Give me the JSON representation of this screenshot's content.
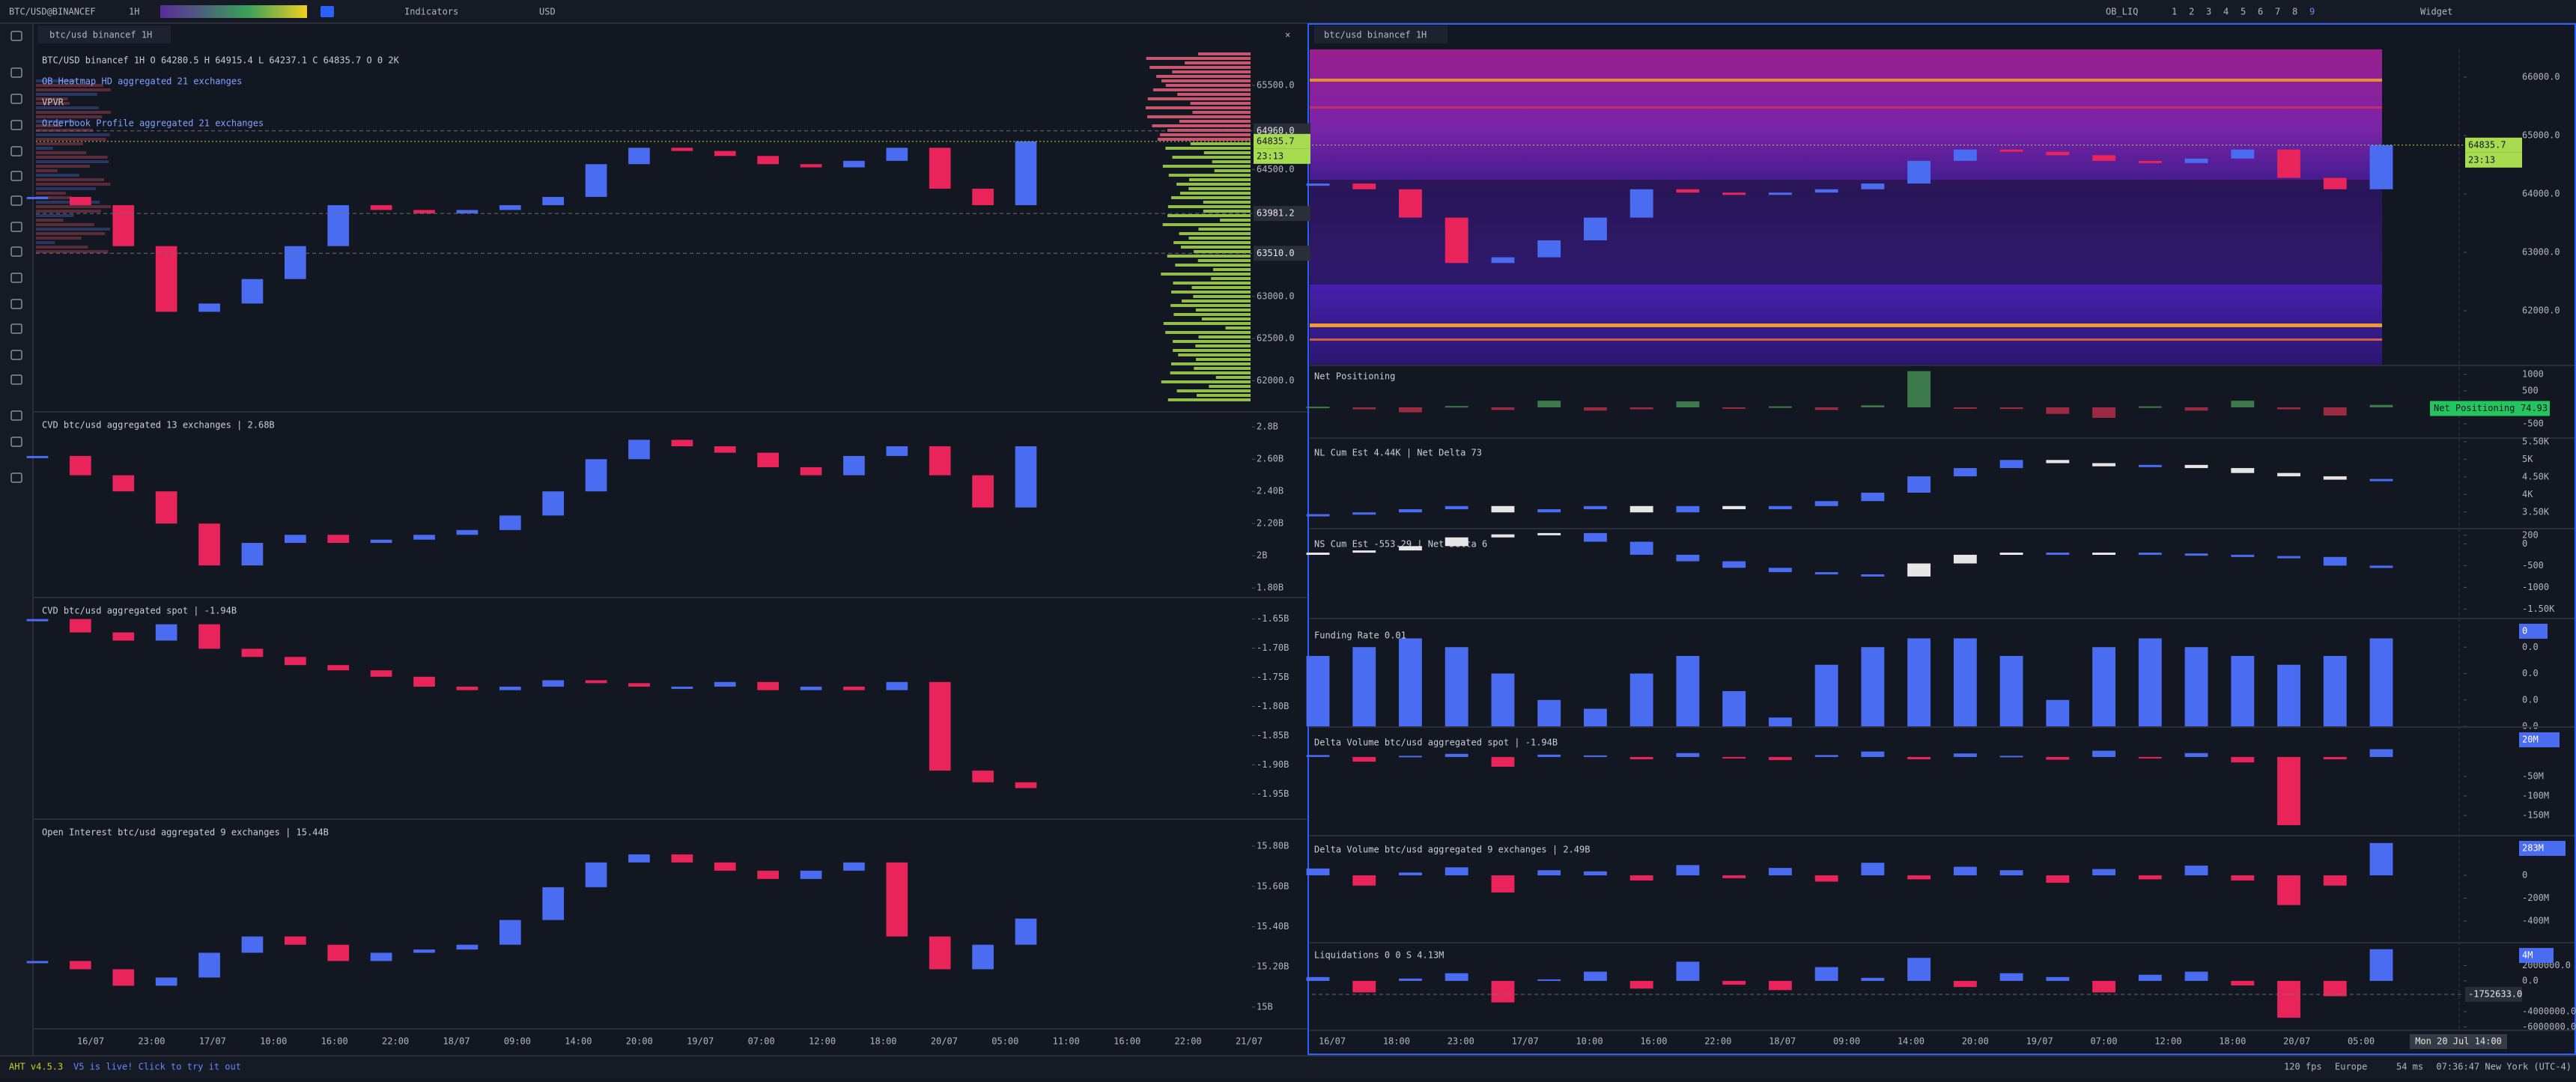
{
  "toolbar": {
    "symbol": "BTC/USD@BINANCEF",
    "timeframe": "1H",
    "indicators": "Indicators",
    "currency": "USD",
    "workspace": "OB_LIQ",
    "layouts": [
      "1",
      "2",
      "3",
      "4",
      "5",
      "6",
      "7",
      "8",
      "9"
    ],
    "widget": "Widget"
  },
  "tabs": {
    "left": "btc/usd binancef 1H",
    "right": "btc/usd binancef 1H"
  },
  "time_axis": {
    "left": [
      "16/07",
      "23:00",
      "17/07",
      "10:00",
      "16:00",
      "22:00",
      "18/07",
      "09:00",
      "14:00",
      "20:00",
      "19/07",
      "07:00",
      "12:00",
      "18:00",
      "20/07",
      "05:00",
      "11:00",
      "16:00",
      "22:00",
      "21/07"
    ],
    "right": [
      "16/07",
      "18:00",
      "23:00",
      "17/07",
      "10:00",
      "16:00",
      "22:00",
      "18/07",
      "09:00",
      "14:00",
      "20:00",
      "19/07",
      "07:00",
      "12:00",
      "18:00",
      "20/07",
      "05:00"
    ],
    "crosshair_time": "Mon 20 Jul 14:00"
  },
  "status_bar": {
    "version": "AHT v4.5.3",
    "announcement": "V5 is live! Click to try it out",
    "fps": "120 fps",
    "region": "Europe",
    "latency": "54 ms",
    "clock": "07:36:47 New York (UTC-4)"
  },
  "chart_data": [
    {
      "type": "candlestick",
      "title": "BTC/USD binancef 1H O 64280.5 H 64915.4 L 64237.1 C 64835.7 O 0 2K",
      "annotations": [
        "OB Heatmap HD aggregated 21 exchanges",
        "VPVR",
        "Orderbook Profile aggregated 21 exchanges"
      ],
      "values": [
        64178,
        64080,
        63595,
        62817,
        62915,
        63205,
        63595,
        64080,
        64023,
        63983,
        64023,
        64080,
        64178,
        64566,
        64760,
        64722,
        64663,
        64566,
        64528,
        64605,
        64760,
        64275,
        64080,
        64835.7
      ],
      "ylim": [
        61650,
        65925
      ],
      "yticks": [
        {
          "value": 65500,
          "label": "65500.0"
        },
        {
          "value": 64500,
          "label": "64500.0"
        },
        {
          "value": 63000,
          "label": "63000.0"
        },
        {
          "value": 62500,
          "label": "62500.0"
        },
        {
          "value": 62000,
          "label": "62000.0"
        }
      ],
      "price_markers": [
        {
          "value": 64960,
          "label": "64960.0"
        },
        {
          "value": 63981.2,
          "label": "63981.2"
        },
        {
          "value": 63510,
          "label": "63510.0"
        }
      ],
      "last_value_badge": true,
      "countdown": "23:13",
      "up_color": "#4a6cf0",
      "down_color": "#e8245a"
    },
    {
      "type": "candlestick",
      "title": "CVD btc/usd aggregated 13 exchanges | 2.68B",
      "values": [
        2.62,
        2.5,
        2.4,
        2.2,
        1.94,
        2.08,
        2.13,
        2.08,
        2.1,
        2.13,
        2.16,
        2.25,
        2.4,
        2.6,
        2.72,
        2.68,
        2.64,
        2.55,
        2.5,
        2.62,
        2.68,
        2.5,
        2.3,
        2.68
      ],
      "ylim": [
        1.75,
        2.88
      ],
      "yticks": [
        {
          "value": 2.8,
          "label": "2.8B"
        },
        {
          "value": 2.6,
          "label": "2.60B"
        },
        {
          "value": 2.4,
          "label": "2.40B"
        },
        {
          "value": 2.2,
          "label": "2.20B"
        },
        {
          "value": 2,
          "label": "2B"
        },
        {
          "value": 1.8,
          "label": "1.80B"
        }
      ],
      "up_color": "#4a6cf0",
      "down_color": "#e8245a"
    },
    {
      "type": "candlestick",
      "title": "CVD btc/usd aggregated spot | -1.94B",
      "values": [
        -1.65,
        -1.673,
        -1.687,
        -1.659,
        -1.701,
        -1.715,
        -1.729,
        -1.738,
        -1.749,
        -1.766,
        -1.772,
        -1.766,
        -1.755,
        -1.76,
        -1.766,
        -1.766,
        -1.758,
        -1.772,
        -1.766,
        -1.772,
        -1.758,
        -1.91,
        -1.93,
        -1.94
      ],
      "ylim": [
        -1.992,
        -1.617
      ],
      "yticks": [
        {
          "value": -1.65,
          "label": "-1.65B"
        },
        {
          "value": -1.7,
          "label": "-1.70B"
        },
        {
          "value": -1.75,
          "label": "-1.75B"
        },
        {
          "value": -1.8,
          "label": "-1.80B"
        },
        {
          "value": -1.85,
          "label": "-1.85B"
        },
        {
          "value": -1.9,
          "label": "-1.90B"
        },
        {
          "value": -1.95,
          "label": "-1.95B"
        }
      ],
      "up_color": "#4a6cf0",
      "down_color": "#e8245a"
    },
    {
      "type": "candlestick",
      "title": "Open Interest btc/usd aggregated 9 exchanges | 15.44B",
      "values": [
        15.229,
        15.188,
        15.106,
        15.147,
        15.27,
        15.351,
        15.31,
        15.229,
        15.27,
        15.286,
        15.31,
        15.433,
        15.596,
        15.719,
        15.759,
        15.719,
        15.678,
        15.637,
        15.678,
        15.719,
        15.351,
        15.188,
        15.31,
        15.44
      ],
      "ylim": [
        14.903,
        15.923
      ],
      "yticks": [
        {
          "value": 15.8,
          "label": "15.80B"
        },
        {
          "value": 15.6,
          "label": "15.60B"
        },
        {
          "value": 15.4,
          "label": "15.40B"
        },
        {
          "value": 15.2,
          "label": "15.20B"
        },
        {
          "value": 15,
          "label": "15B"
        }
      ],
      "up_color": "#4a6cf0",
      "down_color": "#e8245a"
    },
    {
      "type": "candlestick",
      "values": [
        64178,
        64080,
        63595,
        62817,
        62915,
        63205,
        63595,
        64080,
        64023,
        63983,
        64023,
        64080,
        64178,
        64566,
        64760,
        64722,
        64663,
        64566,
        64528,
        64605,
        64760,
        64275,
        64080,
        64835.7
      ],
      "ylim": [
        61077,
        66474
      ],
      "yticks": [
        {
          "value": 66000,
          "label": "66000.0"
        },
        {
          "value": 65000,
          "label": "65000.0"
        },
        {
          "value": 64000,
          "label": "64000.0"
        },
        {
          "value": 63000,
          "label": "63000.0"
        },
        {
          "value": 62000,
          "label": "62000.0"
        }
      ],
      "last_value_badge": true,
      "countdown": "23:13",
      "up_color": "#4a6cf0",
      "down_color": "#e8245a"
    },
    {
      "type": "bar",
      "title": "Net Positioning",
      "values": [
        20,
        -60,
        -150,
        40,
        -80,
        200,
        -100,
        -60,
        180,
        -40,
        30,
        -80,
        60,
        1100,
        -30,
        -50,
        -200,
        -320,
        30,
        -100,
        200,
        -60,
        -250,
        74.93
      ],
      "ylim": [
        -910,
        1205
      ],
      "yticks": [
        1000,
        500,
        -500
      ],
      "title_badge": true,
      "up_color": "#3d7a4b",
      "down_color": "#9a2b42"
    },
    {
      "type": "candlestick",
      "title": "NL Cum Est  4.44K | Net Delta 73",
      "values": [
        3.44,
        3.49,
        3.58,
        3.67,
        3.49,
        3.58,
        3.67,
        3.49,
        3.67,
        3.58,
        3.67,
        3.81,
        4.05,
        4.515,
        4.75,
        4.98,
        4.89,
        4.8,
        4.84,
        4.75,
        4.61,
        4.515,
        4.42,
        4.44
      ],
      "ylim": [
        3.07,
        5.54
      ],
      "yticks": [
        {
          "value": 5.5,
          "label": "5.50K"
        },
        {
          "value": 5,
          "label": "5K"
        },
        {
          "value": 4.5,
          "label": "4.50K"
        },
        {
          "value": 4,
          "label": "4K"
        },
        {
          "value": 3.5,
          "label": "3.50K"
        }
      ],
      "up_color": "#4a6cf0",
      "down_color": "#e6e6e6"
    },
    {
      "type": "candlestick",
      "title": "NS Cum Est  -553.29 | Net Delta 6",
      "values": [
        -200,
        -150,
        -50,
        150,
        220,
        250,
        50,
        -250,
        -400,
        -550,
        -650,
        -700,
        -750,
        -450,
        -250,
        -200,
        -250,
        -200,
        -220,
        -250,
        -280,
        -300,
        -500,
        -553.29
      ],
      "ylim": [
        -1700,
        300
      ],
      "yticks": [
        200,
        0,
        -500,
        -1000,
        {
          "value": -1500,
          "label": "-1.50K"
        }
      ],
      "up_color": "#e6e6e6",
      "down_color": "#4a6cf0"
    },
    {
      "type": "bar",
      "title": "Funding Rate  0.01",
      "values": [
        0.008,
        0.009,
        0.01,
        0.009,
        0.006,
        0.003,
        0.002,
        0.006,
        0.008,
        0.004,
        0.001,
        0.007,
        0.009,
        0.01,
        0.01,
        0.008,
        0.003,
        0.009,
        0.01,
        0.009,
        0.008,
        0.007,
        0.008,
        0.01
      ],
      "ylim": [
        0,
        0.012
      ],
      "yticks": [
        {
          "value": 0.009,
          "label": "0.0"
        },
        {
          "value": 0.006,
          "label": "0.0"
        },
        {
          "value": 0.003,
          "label": "0.0"
        },
        {
          "value": 0,
          "label": "0.0"
        }
      ],
      "badge": "0",
      "up_color": "#4a6cf0",
      "down_color": "#4a6cf0"
    },
    {
      "type": "bar",
      "title": "Delta Volume btc/usd aggregated spot | -1.94B",
      "values": [
        5,
        -12,
        3,
        8,
        -25,
        6,
        4,
        -6,
        10,
        -3,
        -8,
        5,
        14,
        -6,
        9,
        3,
        -7,
        16,
        -3,
        10,
        -14,
        -175,
        -6,
        20
      ],
      "ylim": [
        -200,
        71
      ],
      "yticks": [
        {
          "value": -50,
          "label": "-50M"
        },
        {
          "value": -100,
          "label": "-100M"
        },
        {
          "value": -150,
          "label": "-150M"
        }
      ],
      "badge": "20M",
      "up_color": "#4a6cf0",
      "down_color": "#e8245a"
    },
    {
      "type": "bar",
      "title": "Delta Volume btc/usd aggregated 9 exchanges | 2.49B",
      "values": [
        60,
        -90,
        25,
        70,
        -150,
        45,
        35,
        -45,
        90,
        -25,
        65,
        -55,
        110,
        -35,
        75,
        45,
        -65,
        55,
        -35,
        85,
        -45,
        -260,
        -90,
        283
      ],
      "ylim": [
        -577,
        328
      ],
      "yticks": [
        0,
        {
          "value": -200,
          "label": "-200M"
        },
        {
          "value": -400,
          "label": "-400M"
        }
      ],
      "badge": "283M",
      "up_color": "#4a6cf0",
      "down_color": "#e8245a"
    },
    {
      "type": "bar",
      "title": "Liquidations  0  0  S  4.13M",
      "values": [
        500000,
        -1500000,
        300000,
        1000000,
        -2800000,
        200000,
        1200000,
        -1000000,
        2500000,
        -500000,
        -1200000,
        1800000,
        400000,
        3000000,
        -800000,
        1000000,
        500000,
        -1500000,
        800000,
        1200000,
        -600000,
        -4800000,
        -2000000,
        4130000
      ],
      "ylim": [
        -6440000,
        4680000
      ],
      "yticks": [
        {
          "value": 2000000,
          "label": "2000000.0"
        },
        {
          "value": 0,
          "label": "0.0"
        },
        {
          "value": -4000000,
          "label": "-4000000.0"
        },
        {
          "value": -6000000,
          "label": "-6000000.0"
        }
      ],
      "price_markers": [
        {
          "value": -1752633,
          "label": "-1752633.0"
        }
      ],
      "badge": "4M",
      "up_color": "#4a6cf0",
      "down_color": "#e8245a"
    }
  ]
}
